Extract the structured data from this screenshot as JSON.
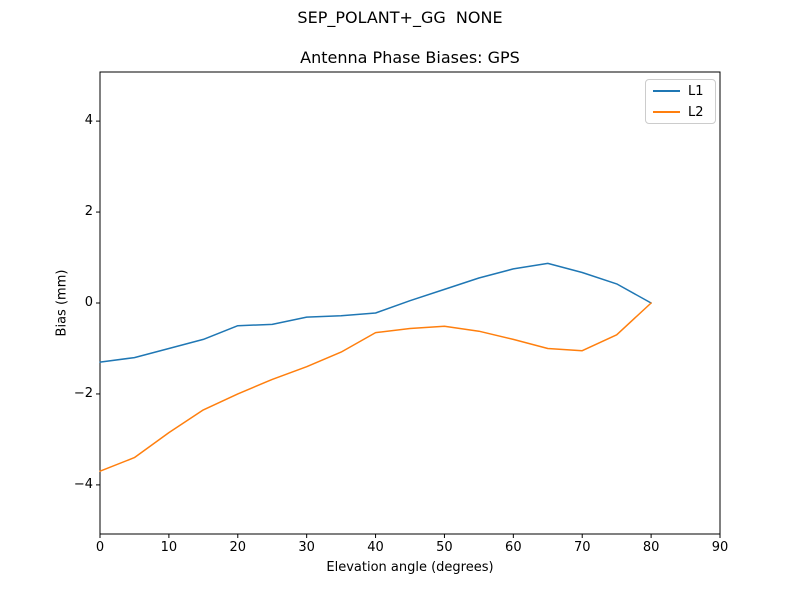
{
  "figure": {
    "suptitle": "SEP_POLANT+_GG  NONE",
    "axes_title": "Antenna Phase Biases: GPS",
    "xlabel": "Elevation angle (degrees)",
    "ylabel": "Bias (mm)"
  },
  "legend": {
    "position": "upper right",
    "entries": [
      {
        "label": "L1",
        "color": "#1f77b4"
      },
      {
        "label": "L2",
        "color": "#ff7f0e"
      }
    ]
  },
  "chart_data": {
    "type": "line",
    "title": "SEP_POLANT+_GG  NONE",
    "subtitle": "Antenna Phase Biases: GPS",
    "xlabel": "Elevation angle (degrees)",
    "ylabel": "Bias (mm)",
    "xlim": [
      0,
      90
    ],
    "ylim": [
      -5.08,
      5.08
    ],
    "xticks": [
      0,
      10,
      20,
      30,
      40,
      50,
      60,
      70,
      80,
      90
    ],
    "yticks": [
      -4,
      -2,
      0,
      2,
      4
    ],
    "grid": false,
    "legend_position": "upper right",
    "frame_color": "#000000",
    "x": [
      0,
      5,
      10,
      15,
      20,
      25,
      30,
      35,
      40,
      45,
      50,
      55,
      60,
      65,
      70,
      75,
      80
    ],
    "series": [
      {
        "name": "L1",
        "color": "#1f77b4",
        "values": [
          -1.3,
          -1.2,
          -1.0,
          -0.8,
          -0.5,
          -0.47,
          -0.31,
          -0.28,
          -0.22,
          0.05,
          0.3,
          0.55,
          0.75,
          0.87,
          0.67,
          0.42,
          0.0
        ]
      },
      {
        "name": "L2",
        "color": "#ff7f0e",
        "values": [
          -3.7,
          -3.4,
          -2.85,
          -2.35,
          -2.0,
          -1.68,
          -1.4,
          -1.08,
          -0.65,
          -0.56,
          -0.51,
          -0.62,
          -0.8,
          -1.0,
          -1.05,
          -0.7,
          0.0
        ]
      }
    ]
  }
}
